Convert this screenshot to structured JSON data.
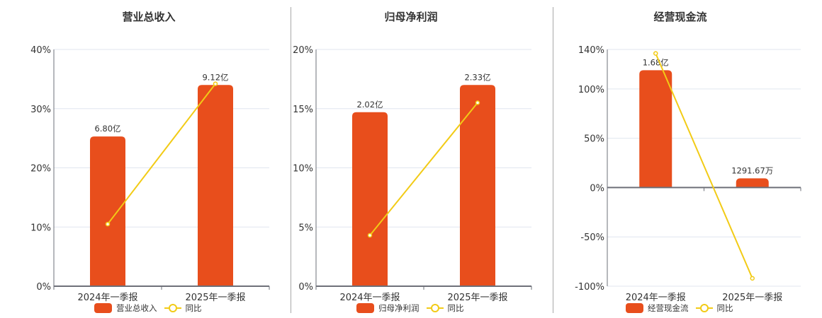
{
  "colors": {
    "bar": "#e84e1c",
    "line": "#f2cb16",
    "grid": "#e0e6ef",
    "axis": "#6e7079",
    "divider": "#a8a8a8"
  },
  "categories": [
    "2024年一季报",
    "2025年一季报"
  ],
  "legend_line_label": "同比",
  "charts": [
    {
      "title": "营业总收入",
      "bar_series_name": "营业总收入",
      "y_ticks": [
        "0%",
        "10%",
        "20%",
        "30%",
        "40%"
      ],
      "bar_labels": [
        "6.80亿",
        "9.12亿"
      ]
    },
    {
      "title": "归母净利润",
      "bar_series_name": "归母净利润",
      "y_ticks": [
        "0%",
        "5%",
        "10%",
        "15%",
        "20%"
      ],
      "bar_labels": [
        "2.02亿",
        "2.33亿"
      ]
    },
    {
      "title": "经营现金流",
      "bar_series_name": "经营现金流",
      "y_ticks": [
        "-100%",
        "-50%",
        "0%",
        "50%",
        "100%",
        "140%"
      ],
      "bar_labels": [
        "1.68亿",
        "1291.67万"
      ]
    }
  ],
  "chart_data": [
    {
      "type": "bar",
      "title": "营业总收入",
      "categories": [
        "2024年一季报",
        "2025年一季报"
      ],
      "series": [
        {
          "name": "营业总收入",
          "type": "bar",
          "values": [
            6.8,
            9.12
          ],
          "unit": "亿",
          "labels": [
            "6.80亿",
            "9.12亿"
          ],
          "plotted_percent": [
            25.3,
            34.0
          ]
        },
        {
          "name": "同比",
          "type": "line",
          "values": [
            10.5,
            34.2
          ],
          "unit": "%"
        }
      ],
      "xlabel": "",
      "ylabel": "",
      "ylim": [
        0,
        40
      ],
      "y_ticks": [
        0,
        10,
        20,
        30,
        40
      ],
      "grid": true,
      "legend_position": "bottom"
    },
    {
      "type": "bar",
      "title": "归母净利润",
      "categories": [
        "2024年一季报",
        "2025年一季报"
      ],
      "series": [
        {
          "name": "归母净利润",
          "type": "bar",
          "values": [
            2.02,
            2.33
          ],
          "unit": "亿",
          "labels": [
            "2.02亿",
            "2.33亿"
          ],
          "plotted_percent": [
            14.7,
            17.0
          ]
        },
        {
          "name": "同比",
          "type": "line",
          "values": [
            4.3,
            15.5
          ],
          "unit": "%"
        }
      ],
      "xlabel": "",
      "ylabel": "",
      "ylim": [
        0,
        20
      ],
      "y_ticks": [
        0,
        5,
        10,
        15,
        20
      ],
      "grid": true,
      "legend_position": "bottom"
    },
    {
      "type": "bar",
      "title": "经营现金流",
      "categories": [
        "2024年一季报",
        "2025年一季报"
      ],
      "series": [
        {
          "name": "经营现金流",
          "type": "bar",
          "values": [
            1.68,
            0.129167
          ],
          "unit": "亿",
          "labels": [
            "1.68亿",
            "1291.67万"
          ],
          "plotted_percent": [
            119,
            9.3
          ]
        },
        {
          "name": "同比",
          "type": "line",
          "values": [
            136,
            -92
          ],
          "unit": "%"
        }
      ],
      "xlabel": "",
      "ylabel": "",
      "ylim": [
        -100,
        140
      ],
      "y_ticks": [
        -100,
        -50,
        0,
        50,
        100,
        140
      ],
      "grid": true,
      "legend_position": "bottom"
    }
  ]
}
